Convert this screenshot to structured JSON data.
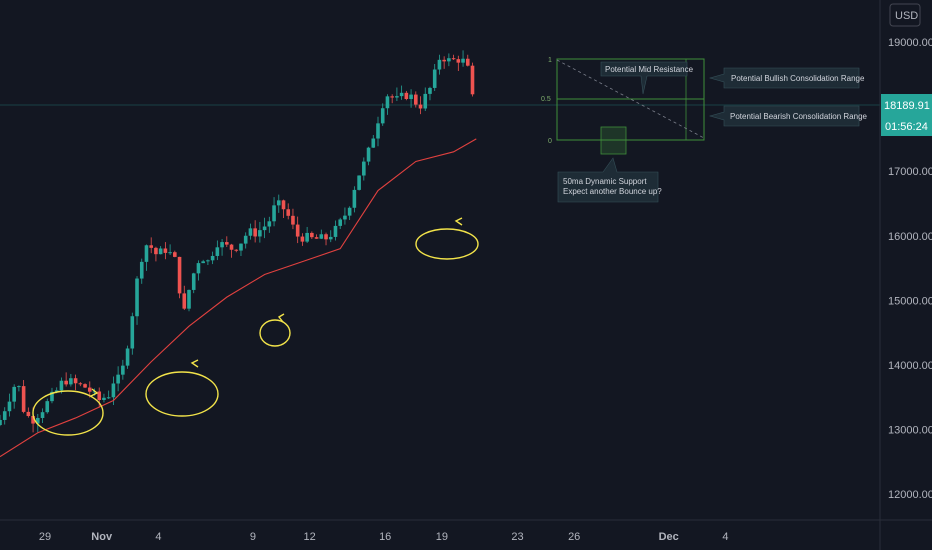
{
  "currency": "USD",
  "colors": {
    "background": "#131722",
    "up": "#26a69a",
    "down": "#ef5350",
    "ma": "#e0413f",
    "highlight": "#f2e34a",
    "box": "#3f8f3a",
    "price_tag": "#26a69a"
  },
  "price_tag": {
    "price": "18189.91",
    "countdown": "01:56:24"
  },
  "annotations": {
    "mid_resistance": "Potential Mid Resistance",
    "bullish_range": "Potential Bullish Consolidation Range",
    "bearish_range": "Potential Bearish Consolidation Range",
    "support_line1": "50ma Dynamic Support",
    "support_line2": "Expect another Bounce up?"
  },
  "fib_levels": [
    {
      "label": "1",
      "value": 19000
    },
    {
      "label": "0.5",
      "value": 18350
    },
    {
      "label": "0",
      "value": 17600
    }
  ],
  "chart_data": {
    "type": "candlestick",
    "title": "",
    "y_ticks": [
      "19000.00",
      "17000.00",
      "16000.00",
      "15000.00",
      "14000.00",
      "13000.00",
      "12000.00"
    ],
    "ylim": [
      11600,
      19650
    ],
    "x_ticks": [
      {
        "label": "29",
        "bold": false,
        "day": 0
      },
      {
        "label": "Nov",
        "bold": true,
        "day": 3
      },
      {
        "label": "4",
        "bold": false,
        "day": 6
      },
      {
        "label": "9",
        "bold": false,
        "day": 11
      },
      {
        "label": "12",
        "bold": false,
        "day": 14
      },
      {
        "label": "16",
        "bold": false,
        "day": 18
      },
      {
        "label": "19",
        "bold": false,
        "day": 21
      },
      {
        "label": "23",
        "bold": false,
        "day": 25
      },
      {
        "label": "26",
        "bold": false,
        "day": 28
      },
      {
        "label": "Dec",
        "bold": true,
        "day": 33
      },
      {
        "label": "4",
        "bold": false,
        "day": 36
      }
    ],
    "close_series": [
      [
        0,
        13150
      ],
      [
        0.5,
        13500
      ],
      [
        0.9,
        13780
      ],
      [
        1.3,
        13250
      ],
      [
        1.7,
        13150
      ],
      [
        2.2,
        13300
      ],
      [
        2.6,
        13450
      ],
      [
        3.0,
        13600
      ],
      [
        3.4,
        13780
      ],
      [
        4.0,
        13700
      ],
      [
        4.6,
        13650
      ],
      [
        5.2,
        13450
      ],
      [
        5.8,
        13550
      ],
      [
        6.1,
        13850
      ],
      [
        6.3,
        13750
      ],
      [
        6.6,
        14050
      ],
      [
        7.0,
        14800
      ],
      [
        7.4,
        15600
      ],
      [
        7.8,
        15900
      ],
      [
        8.3,
        15700
      ],
      [
        8.8,
        15800
      ],
      [
        9.3,
        15600
      ],
      [
        9.7,
        14750
      ],
      [
        10.1,
        15300
      ],
      [
        10.6,
        15700
      ],
      [
        11.0,
        15600
      ],
      [
        11.5,
        15900
      ],
      [
        12.2,
        15800
      ],
      [
        12.6,
        15850
      ],
      [
        13.1,
        16050
      ],
      [
        13.6,
        16050
      ],
      [
        14.2,
        16200
      ],
      [
        14.6,
        16500
      ],
      [
        15.1,
        16400
      ],
      [
        15.7,
        16000
      ],
      [
        16.5,
        15950
      ],
      [
        17.2,
        15950
      ],
      [
        17.8,
        16100
      ],
      [
        18.4,
        16400
      ],
      [
        18.9,
        16900
      ],
      [
        19.4,
        17200
      ],
      [
        19.8,
        17600
      ],
      [
        20.4,
        18200
      ],
      [
        21.0,
        18100
      ],
      [
        21.6,
        18200
      ],
      [
        22.2,
        18000
      ],
      [
        22.8,
        18300
      ],
      [
        23.3,
        18800
      ],
      [
        23.8,
        18700
      ],
      [
        24.4,
        18750
      ],
      [
        25.0,
        18450
      ],
      [
        25.2,
        18190
      ]
    ],
    "ma_series": [
      [
        0,
        12580
      ],
      [
        2,
        12950
      ],
      [
        4,
        13180
      ],
      [
        6,
        13450
      ],
      [
        8,
        14050
      ],
      [
        10,
        14600
      ],
      [
        12,
        15050
      ],
      [
        14,
        15400
      ],
      [
        16,
        15600
      ],
      [
        18,
        15800
      ],
      [
        20,
        16700
      ],
      [
        22,
        17150
      ],
      [
        24,
        17300
      ],
      [
        25.2,
        17500
      ]
    ],
    "legend": "none",
    "grid": false
  }
}
